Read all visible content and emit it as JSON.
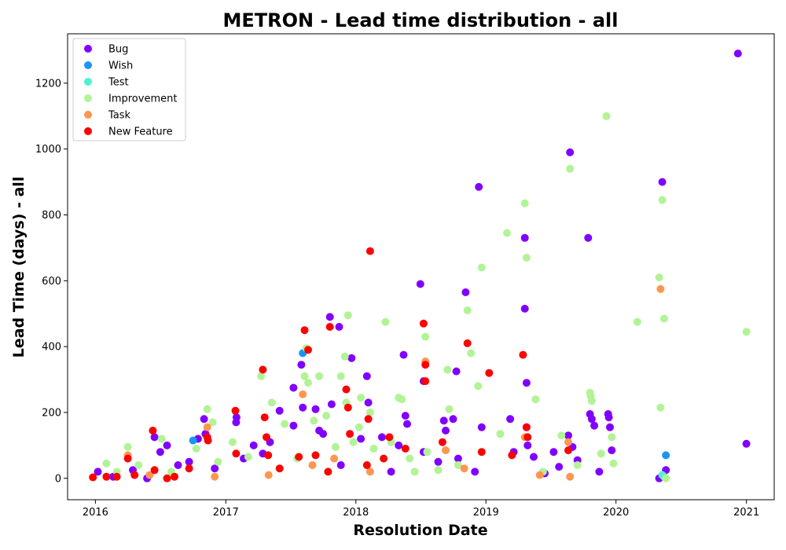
{
  "chart_data": {
    "type": "scatter",
    "title": "METRON - Lead time distribution - all",
    "xlabel": "Resolution Date",
    "ylabel": "Lead Time (days) - all",
    "xlim": [
      "2015-10-15",
      "2021-03-20"
    ],
    "ylim": [
      -65,
      1350
    ],
    "x_ticks": [
      "2016",
      "2017",
      "2018",
      "2019",
      "2020",
      "2021"
    ],
    "y_ticks": [
      0,
      200,
      400,
      600,
      800,
      1000,
      1200
    ],
    "grid": false,
    "legend_position": "top-left",
    "colors": {
      "Bug": "#8000ff",
      "Wish": "#1996f3",
      "Test": "#4df3ce",
      "Improvement": "#b2f396",
      "Task": "#ff964f",
      "New Feature": "#ff0000"
    },
    "series": [
      {
        "name": "Bug",
        "points": [
          [
            "2016-01-08",
            20
          ],
          [
            "2016-02-20",
            5
          ],
          [
            "2016-04-15",
            25
          ],
          [
            "2016-05-25",
            0
          ],
          [
            "2016-06-15",
            125
          ],
          [
            "2016-07-01",
            80
          ],
          [
            "2016-07-20",
            100
          ],
          [
            "2016-08-20",
            40
          ],
          [
            "2016-09-20",
            50
          ],
          [
            "2016-10-15",
            120
          ],
          [
            "2016-11-01",
            180
          ],
          [
            "2016-11-05",
            135
          ],
          [
            "2016-12-01",
            30
          ],
          [
            "2017-01-30",
            170
          ],
          [
            "2017-01-31",
            185
          ],
          [
            "2017-02-20",
            60
          ],
          [
            "2017-03-20",
            100
          ],
          [
            "2017-04-15",
            75
          ],
          [
            "2017-05-05",
            110
          ],
          [
            "2017-06-01",
            205
          ],
          [
            "2017-07-10",
            275
          ],
          [
            "2017-07-10",
            160
          ],
          [
            "2017-08-01",
            345
          ],
          [
            "2017-08-05",
            215
          ],
          [
            "2017-09-10",
            210
          ],
          [
            "2017-09-20",
            145
          ],
          [
            "2017-10-01",
            135
          ],
          [
            "2017-10-20",
            490
          ],
          [
            "2017-10-25",
            225
          ],
          [
            "2017-11-15",
            460
          ],
          [
            "2017-11-20",
            40
          ],
          [
            "2017-12-20",
            365
          ],
          [
            "2018-01-15",
            120
          ],
          [
            "2018-02-01",
            310
          ],
          [
            "2018-02-05",
            230
          ],
          [
            "2018-03-15",
            125
          ],
          [
            "2018-04-10",
            20
          ],
          [
            "2018-05-01",
            100
          ],
          [
            "2018-05-15",
            375
          ],
          [
            "2018-05-20",
            190
          ],
          [
            "2018-05-25",
            165
          ],
          [
            "2018-07-01",
            590
          ],
          [
            "2018-07-10",
            295
          ],
          [
            "2018-07-10",
            80
          ],
          [
            "2018-08-20",
            50
          ],
          [
            "2018-09-05",
            175
          ],
          [
            "2018-09-10",
            145
          ],
          [
            "2018-10-01",
            180
          ],
          [
            "2018-10-10",
            325
          ],
          [
            "2018-10-15",
            60
          ],
          [
            "2018-11-05",
            565
          ],
          [
            "2018-12-01",
            20
          ],
          [
            "2018-12-12",
            885
          ],
          [
            "2018-12-20",
            155
          ],
          [
            "2019-03-10",
            180
          ],
          [
            "2019-03-20",
            80
          ],
          [
            "2019-04-20",
            730
          ],
          [
            "2019-04-20",
            515
          ],
          [
            "2019-04-25",
            290
          ],
          [
            "2019-04-25",
            155
          ],
          [
            "2019-04-28",
            100
          ],
          [
            "2019-05-15",
            65
          ],
          [
            "2019-06-15",
            15
          ],
          [
            "2019-07-10",
            80
          ],
          [
            "2019-07-25",
            35
          ],
          [
            "2019-08-20",
            130
          ],
          [
            "2019-08-25",
            990
          ],
          [
            "2019-09-01",
            95
          ],
          [
            "2019-09-15",
            55
          ],
          [
            "2019-10-15",
            730
          ],
          [
            "2019-10-20",
            195
          ],
          [
            "2019-10-25",
            180
          ],
          [
            "2019-11-01",
            160
          ],
          [
            "2019-11-15",
            20
          ],
          [
            "2019-12-10",
            195
          ],
          [
            "2019-12-12",
            185
          ],
          [
            "2019-12-15",
            155
          ],
          [
            "2019-12-20",
            85
          ],
          [
            "2020-05-01",
            0
          ],
          [
            "2020-05-10",
            900
          ],
          [
            "2020-05-20",
            25
          ],
          [
            "2020-12-08",
            1290
          ],
          [
            "2021-01-01",
            105
          ]
        ]
      },
      {
        "name": "Wish",
        "points": [
          [
            "2016-10-01",
            115
          ],
          [
            "2017-08-05",
            380
          ],
          [
            "2020-05-20",
            70
          ]
        ]
      },
      {
        "name": "Test",
        "points": [
          [
            "2020-05-10",
            10
          ],
          [
            "2020-05-15",
            5
          ]
        ]
      },
      {
        "name": "Improvement",
        "points": [
          [
            "2016-02-01",
            45
          ],
          [
            "2016-03-01",
            20
          ],
          [
            "2016-04-01",
            95
          ],
          [
            "2016-05-01",
            40
          ],
          [
            "2016-07-05",
            120
          ],
          [
            "2016-08-01",
            20
          ],
          [
            "2016-10-10",
            90
          ],
          [
            "2016-11-10",
            210
          ],
          [
            "2016-11-25",
            170
          ],
          [
            "2016-12-10",
            50
          ],
          [
            "2017-01-20",
            110
          ],
          [
            "2017-03-05",
            65
          ],
          [
            "2017-04-10",
            310
          ],
          [
            "2017-05-10",
            230
          ],
          [
            "2017-06-15",
            165
          ],
          [
            "2017-07-20",
            60
          ],
          [
            "2017-08-10",
            310
          ],
          [
            "2017-08-15",
            395
          ],
          [
            "2017-08-20",
            290
          ],
          [
            "2017-09-05",
            175
          ],
          [
            "2017-09-20",
            310
          ],
          [
            "2017-10-10",
            190
          ],
          [
            "2017-11-05",
            95
          ],
          [
            "2017-11-20",
            310
          ],
          [
            "2017-12-01",
            370
          ],
          [
            "2017-12-05",
            230
          ],
          [
            "2017-12-10",
            495
          ],
          [
            "2017-12-25",
            110
          ],
          [
            "2018-01-10",
            155
          ],
          [
            "2018-01-15",
            245
          ],
          [
            "2018-02-10",
            200
          ],
          [
            "2018-02-20",
            90
          ],
          [
            "2018-03-25",
            475
          ],
          [
            "2018-04-10",
            110
          ],
          [
            "2018-05-01",
            245
          ],
          [
            "2018-05-10",
            240
          ],
          [
            "2018-06-01",
            60
          ],
          [
            "2018-06-15",
            20
          ],
          [
            "2018-07-15",
            430
          ],
          [
            "2018-07-20",
            80
          ],
          [
            "2018-08-20",
            25
          ],
          [
            "2018-09-15",
            330
          ],
          [
            "2018-09-20",
            210
          ],
          [
            "2018-10-15",
            40
          ],
          [
            "2018-11-10",
            510
          ],
          [
            "2018-11-20",
            380
          ],
          [
            "2018-12-10",
            280
          ],
          [
            "2018-12-20",
            640
          ],
          [
            "2019-02-10",
            135
          ],
          [
            "2019-03-01",
            745
          ],
          [
            "2019-04-20",
            835
          ],
          [
            "2019-04-25",
            670
          ],
          [
            "2019-05-20",
            240
          ],
          [
            "2019-06-10",
            20
          ],
          [
            "2019-08-01",
            130
          ],
          [
            "2019-08-25",
            940
          ],
          [
            "2019-09-15",
            40
          ],
          [
            "2019-10-20",
            260
          ],
          [
            "2019-10-22",
            250
          ],
          [
            "2019-10-25",
            235
          ],
          [
            "2019-11-20",
            75
          ],
          [
            "2019-12-05",
            1100
          ],
          [
            "2019-12-20",
            125
          ],
          [
            "2019-12-25",
            45
          ],
          [
            "2020-03-01",
            475
          ],
          [
            "2020-05-01",
            610
          ],
          [
            "2020-05-05",
            215
          ],
          [
            "2020-05-10",
            845
          ],
          [
            "2020-05-15",
            485
          ],
          [
            "2020-05-20",
            0
          ],
          [
            "2021-01-01",
            445
          ]
        ]
      },
      {
        "name": "Task",
        "points": [
          [
            "2016-04-01",
            70
          ],
          [
            "2016-06-01",
            10
          ],
          [
            "2016-11-10",
            155
          ],
          [
            "2016-12-01",
            5
          ],
          [
            "2017-05-01",
            10
          ],
          [
            "2017-08-05",
            255
          ],
          [
            "2017-09-01",
            40
          ],
          [
            "2017-11-01",
            60
          ],
          [
            "2018-02-10",
            20
          ],
          [
            "2018-07-15",
            355
          ],
          [
            "2018-09-10",
            85
          ],
          [
            "2018-11-01",
            30
          ],
          [
            "2019-04-20",
            125
          ],
          [
            "2019-06-01",
            10
          ],
          [
            "2019-08-20",
            110
          ],
          [
            "2019-08-25",
            5
          ],
          [
            "2020-05-05",
            575
          ]
        ]
      },
      {
        "name": "New Feature",
        "points": [
          [
            "2015-12-25",
            3
          ],
          [
            "2016-02-01",
            5
          ],
          [
            "2016-03-01",
            5
          ],
          [
            "2016-04-01",
            60
          ],
          [
            "2016-04-20",
            10
          ],
          [
            "2016-06-10",
            145
          ],
          [
            "2016-06-15",
            25
          ],
          [
            "2016-07-20",
            0
          ],
          [
            "2016-08-10",
            5
          ],
          [
            "2016-09-20",
            30
          ],
          [
            "2016-11-10",
            125
          ],
          [
            "2016-11-12",
            115
          ],
          [
            "2017-01-28",
            205
          ],
          [
            "2017-01-30",
            75
          ],
          [
            "2017-04-15",
            330
          ],
          [
            "2017-04-20",
            185
          ],
          [
            "2017-04-25",
            125
          ],
          [
            "2017-04-30",
            70
          ],
          [
            "2017-06-01",
            30
          ],
          [
            "2017-07-25",
            65
          ],
          [
            "2017-08-10",
            450
          ],
          [
            "2017-08-20",
            390
          ],
          [
            "2017-09-10",
            70
          ],
          [
            "2017-10-15",
            20
          ],
          [
            "2017-10-20",
            460
          ],
          [
            "2017-12-05",
            270
          ],
          [
            "2017-12-10",
            215
          ],
          [
            "2017-12-15",
            135
          ],
          [
            "2018-02-01",
            40
          ],
          [
            "2018-02-05",
            180
          ],
          [
            "2018-02-10",
            690
          ],
          [
            "2018-03-20",
            60
          ],
          [
            "2018-04-05",
            125
          ],
          [
            "2018-05-20",
            90
          ],
          [
            "2018-07-10",
            470
          ],
          [
            "2018-07-15",
            345
          ],
          [
            "2018-07-15",
            295
          ],
          [
            "2018-09-01",
            110
          ],
          [
            "2018-11-10",
            410
          ],
          [
            "2018-12-20",
            80
          ],
          [
            "2019-01-10",
            320
          ],
          [
            "2019-03-15",
            70
          ],
          [
            "2019-04-15",
            375
          ],
          [
            "2019-04-25",
            155
          ],
          [
            "2019-04-28",
            125
          ],
          [
            "2019-08-20",
            85
          ]
        ]
      }
    ]
  }
}
